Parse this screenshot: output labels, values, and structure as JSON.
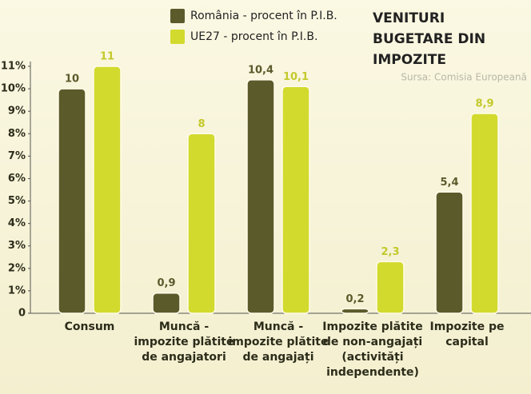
{
  "chart_data": {
    "type": "bar",
    "title": "VENITURI BUGETARE DIN IMPOZITE",
    "source": "Sursa: Comisia Europeană",
    "categories": [
      "Consum",
      "Muncă - impozite plătite de angajatori",
      "Muncă - impozite plătite de angajați",
      "Impozite plătite de non-angajați (activități independente)",
      "Impozite pe capital"
    ],
    "series": [
      {
        "name": "România - procent în P.I.B.",
        "color": "#5b5a2b",
        "values": [
          10,
          0.9,
          10.4,
          0.2,
          5.4
        ],
        "value_labels": [
          "10",
          "0,9",
          "10,4",
          "0,2",
          "5,4"
        ]
      },
      {
        "name": "UE27 - procent în P.I.B.",
        "color": "#d2da2e",
        "values": [
          11,
          8,
          10.1,
          2.3,
          8.9
        ],
        "value_labels": [
          "11",
          "8",
          "10,1",
          "2,3",
          "8,9"
        ]
      }
    ],
    "ylim": [
      0,
      11
    ],
    "yticks": [
      0,
      {
        "value": 1,
        "label": "1%"
      },
      {
        "value": 2,
        "label": "2%"
      },
      {
        "value": 3,
        "label": "3%"
      },
      {
        "value": 4,
        "label": "4%"
      },
      {
        "value": 5,
        "label": "5%"
      },
      {
        "value": 6,
        "label": "6%"
      },
      {
        "value": 7,
        "label": "7%"
      },
      {
        "value": 8,
        "label": "8%"
      },
      {
        "value": 9,
        "label": "9%"
      },
      {
        "value": 10,
        "label": "10%"
      },
      {
        "value": 11,
        "label": "11%"
      }
    ],
    "grid": false
  }
}
